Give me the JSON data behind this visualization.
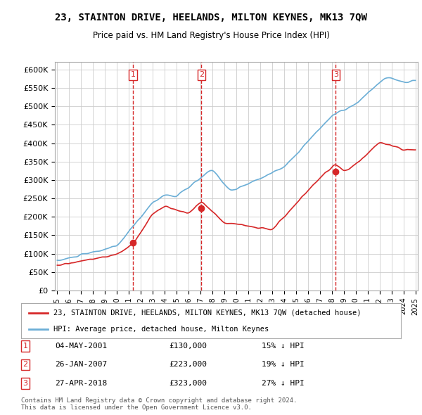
{
  "title": "23, STAINTON DRIVE, HEELANDS, MILTON KEYNES, MK13 7QW",
  "subtitle": "Price paid vs. HM Land Registry's House Price Index (HPI)",
  "ylabel_ticks": [
    "£0",
    "£50K",
    "£100K",
    "£150K",
    "£200K",
    "£250K",
    "£300K",
    "£350K",
    "£400K",
    "£450K",
    "£500K",
    "£550K",
    "£600K"
  ],
  "ylim": [
    0,
    620000
  ],
  "ytick_vals": [
    0,
    50000,
    100000,
    150000,
    200000,
    250000,
    300000,
    350000,
    400000,
    450000,
    500000,
    550000,
    600000
  ],
  "sale_dates": [
    "2001-05-04",
    "2007-01-26",
    "2018-04-27"
  ],
  "sale_prices": [
    130000,
    223000,
    323000
  ],
  "sale_labels": [
    "1",
    "2",
    "3"
  ],
  "hpi_color": "#6baed6",
  "price_color": "#d62728",
  "sale_marker_color": "#d62728",
  "vline_color": "#d62728",
  "legend_label_price": "23, STAINTON DRIVE, HEELANDS, MILTON KEYNES, MK13 7QW (detached house)",
  "legend_label_hpi": "HPI: Average price, detached house, Milton Keynes",
  "table_data": [
    [
      "1",
      "04-MAY-2001",
      "£130,000",
      "15% ↓ HPI"
    ],
    [
      "2",
      "26-JAN-2007",
      "£223,000",
      "19% ↓ HPI"
    ],
    [
      "3",
      "27-APR-2018",
      "£323,000",
      "27% ↓ HPI"
    ]
  ],
  "footnote": "Contains HM Land Registry data © Crown copyright and database right 2024.\nThis data is licensed under the Open Government Licence v3.0.",
  "bg_color": "#ffffff",
  "grid_color": "#cccccc",
  "xstart_year": 1995,
  "xend_year": 2025
}
